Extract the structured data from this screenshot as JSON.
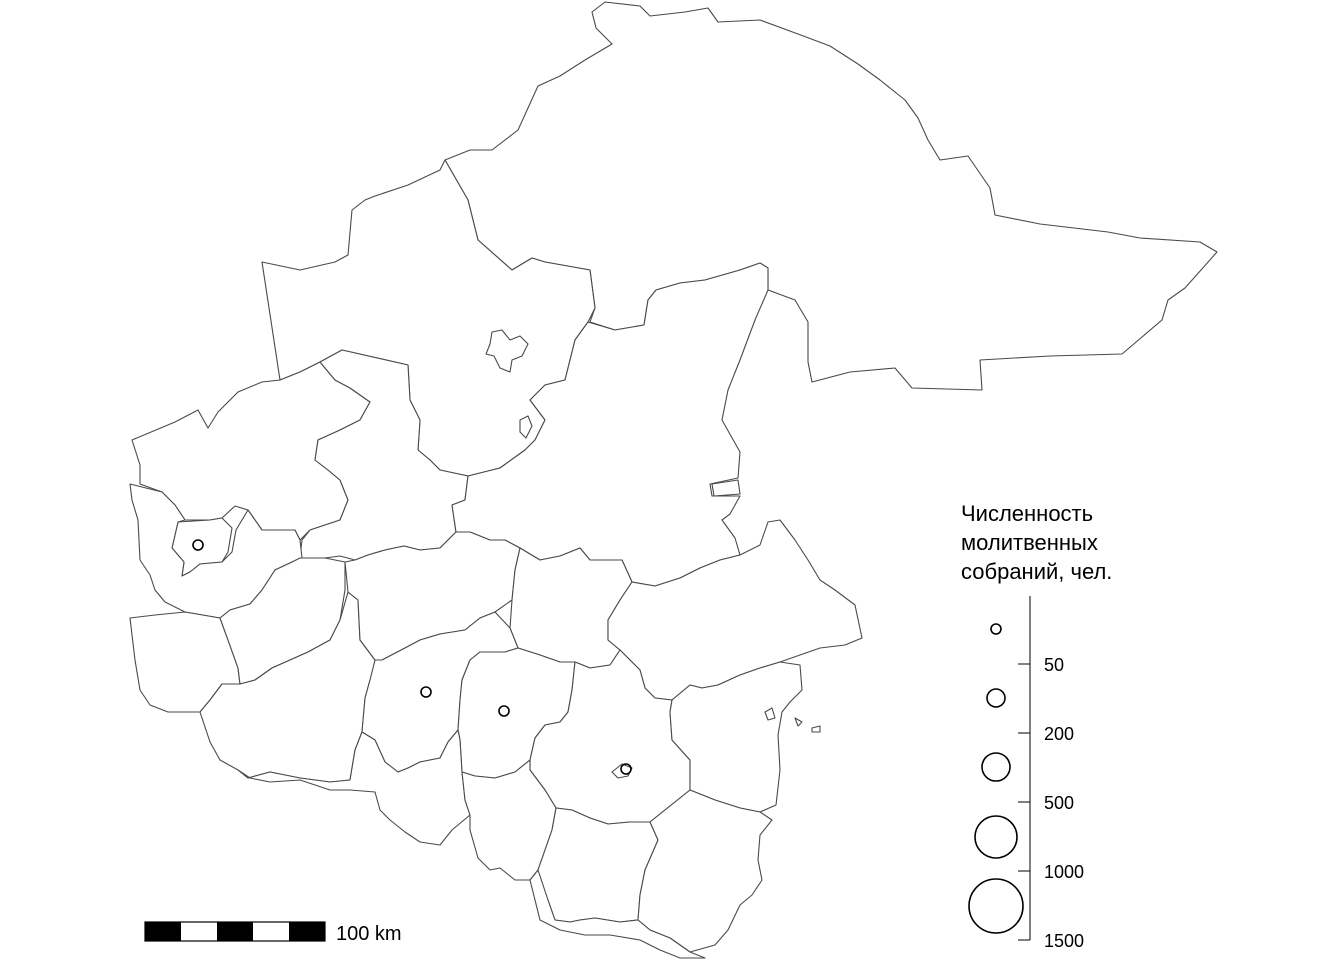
{
  "legend": {
    "title_lines": [
      "Численность",
      "молитвенных",
      "собраний, чел."
    ],
    "ticks": [
      "50",
      "200",
      "500",
      "1000",
      "1500"
    ]
  },
  "scale_bar": {
    "label": "100 km",
    "segments": 5
  },
  "points": [
    {
      "name": "settlement-west"
    },
    {
      "name": "settlement-center-west"
    },
    {
      "name": "settlement-center"
    },
    {
      "name": "settlement-center-south"
    }
  ]
}
